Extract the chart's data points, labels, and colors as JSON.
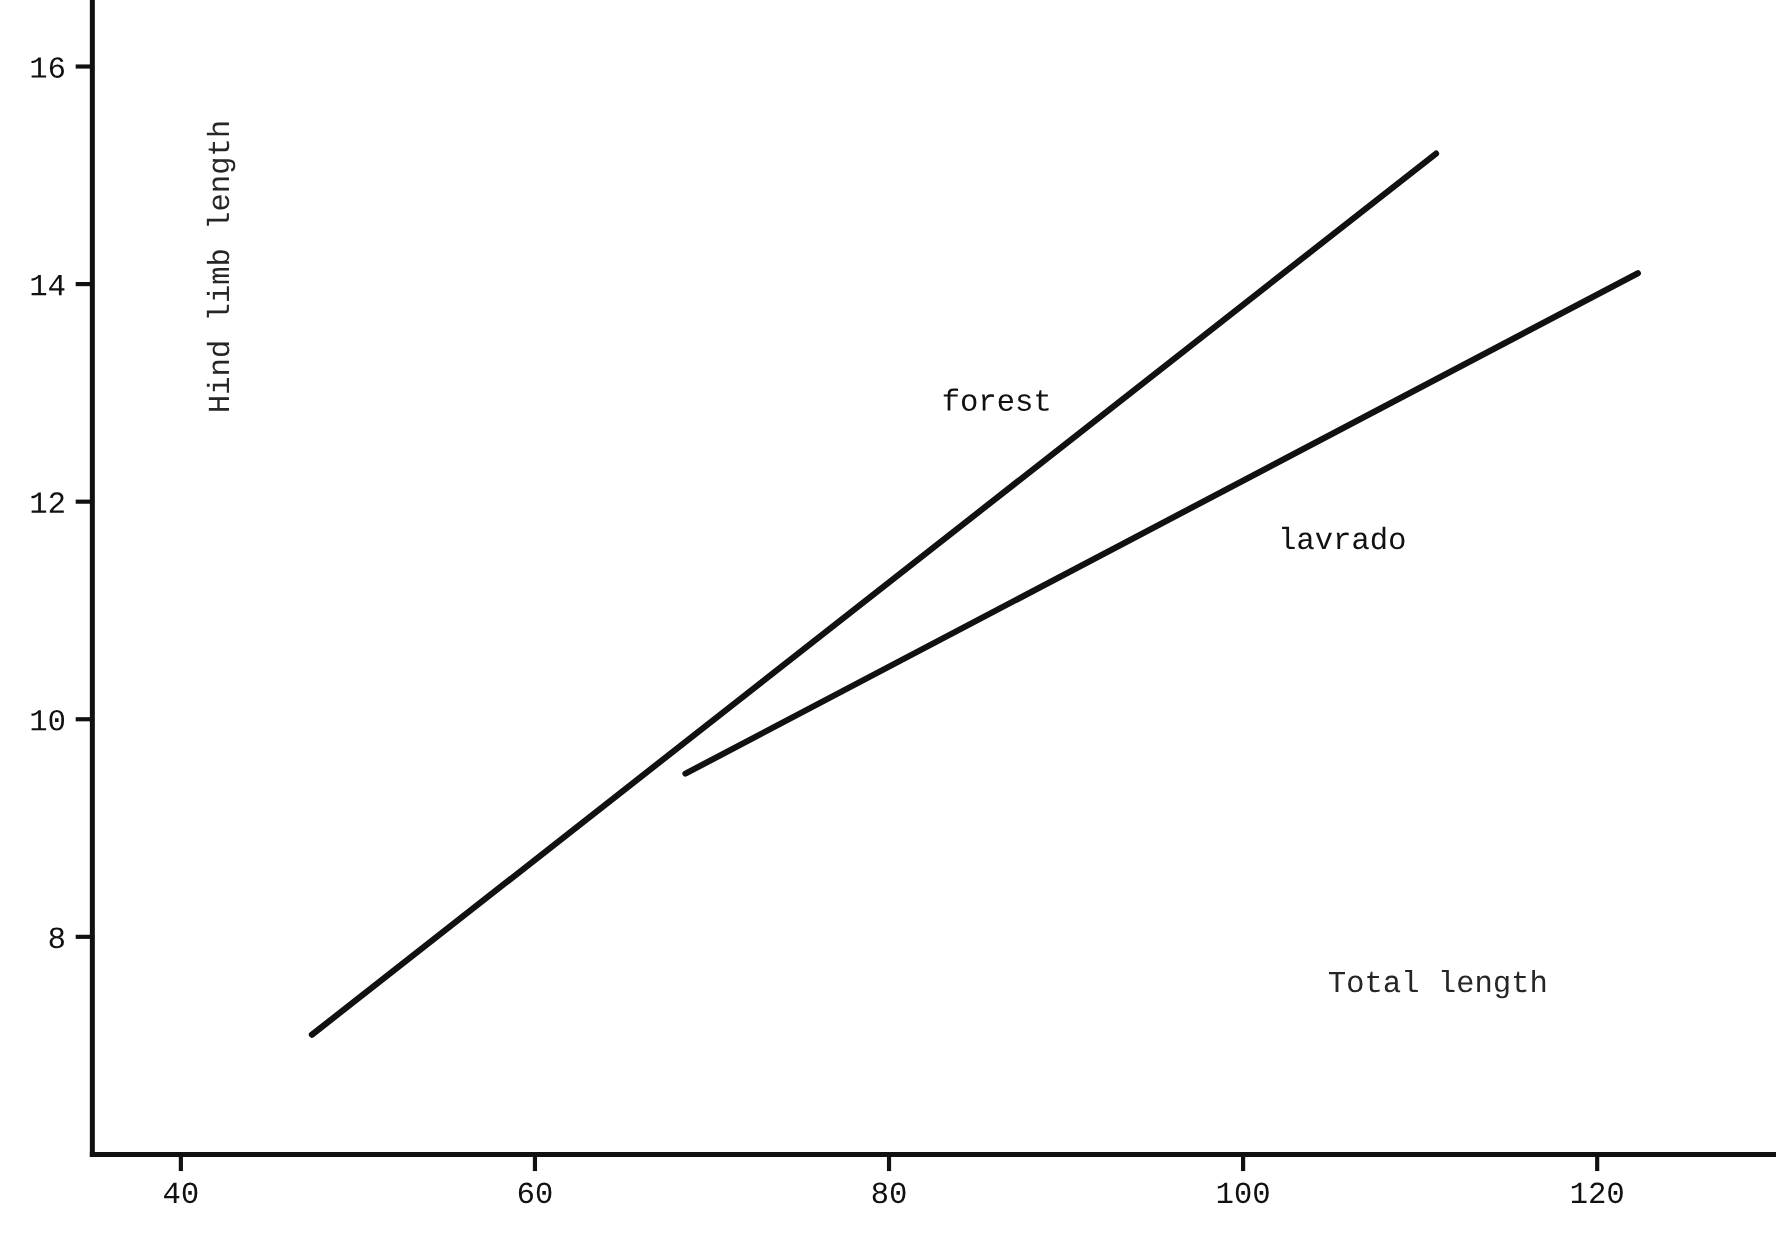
{
  "chart_data": {
    "type": "line",
    "xlabel": "Total length",
    "ylabel": "Hind limb length",
    "series": [
      {
        "name": "forest",
        "color": "#111111",
        "x": [
          47.4,
          110.9
        ],
        "values": [
          7.1,
          15.2
        ]
      },
      {
        "name": "lavrado",
        "color": "#111111",
        "x": [
          68.5,
          122.3
        ],
        "values": [
          9.5,
          14.1
        ]
      }
    ],
    "xlim": [
      35,
      130
    ],
    "ylim": [
      6,
      16.6
    ],
    "xticks": [
      40,
      60,
      80,
      100,
      120
    ],
    "yticks": [
      8,
      10,
      12,
      14,
      16
    ],
    "grid": false,
    "legend": false,
    "marker": "none",
    "line_style": "solid"
  }
}
